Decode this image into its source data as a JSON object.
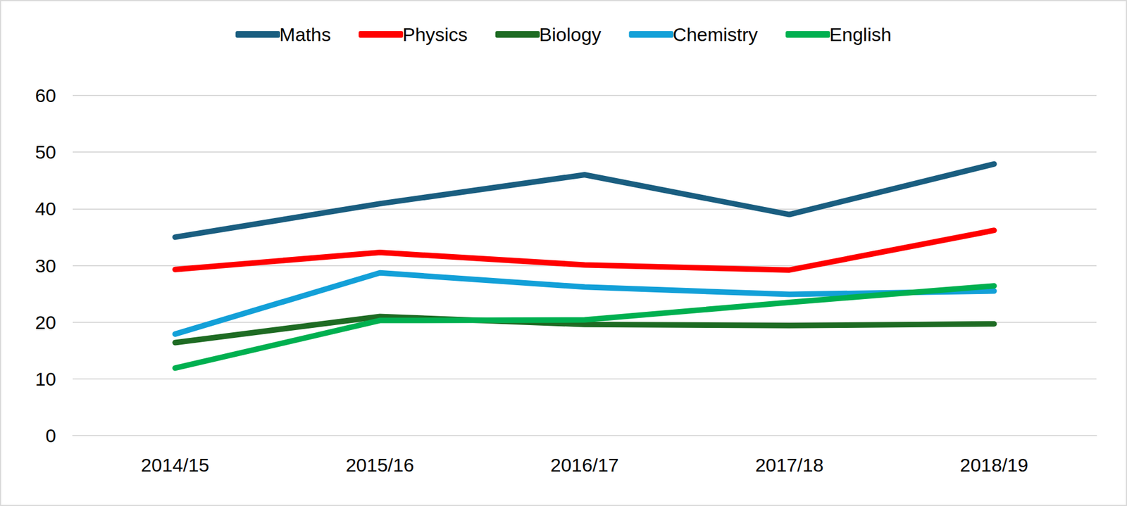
{
  "chart_data": {
    "type": "line",
    "categories": [
      "2014/15",
      "2015/16",
      "2016/17",
      "2017/18",
      "2018/19"
    ],
    "series": [
      {
        "name": "Maths",
        "color": "#1a5e80",
        "values": [
          35.0,
          40.9,
          46.0,
          39.0,
          47.9
        ]
      },
      {
        "name": "Physics",
        "color": "#ff0000",
        "values": [
          29.3,
          32.3,
          30.1,
          29.2,
          36.2
        ]
      },
      {
        "name": "Biology",
        "color": "#1e6b23",
        "values": [
          16.4,
          21.0,
          19.6,
          19.4,
          19.7
        ]
      },
      {
        "name": "Chemistry",
        "color": "#13a0d8",
        "values": [
          17.9,
          28.7,
          26.2,
          24.9,
          25.5
        ]
      },
      {
        "name": "English",
        "color": "#00b050",
        "values": [
          11.9,
          20.3,
          20.4,
          23.5,
          26.4
        ]
      }
    ],
    "ylim": [
      0,
      60
    ],
    "yticks": [
      0,
      10,
      20,
      30,
      40,
      50,
      60
    ],
    "grid": true,
    "legend": "top"
  }
}
